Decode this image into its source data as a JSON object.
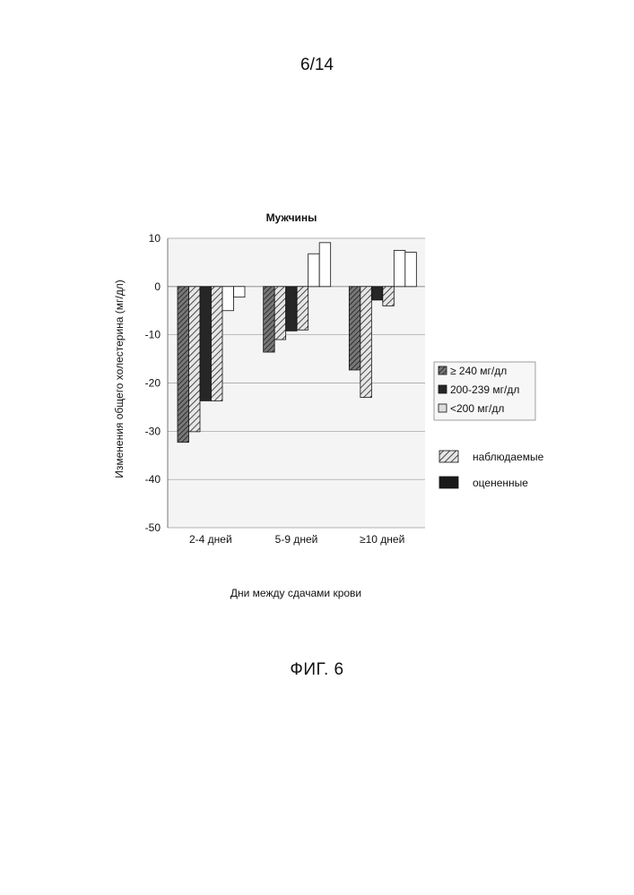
{
  "page_number": "6/14",
  "figure_caption": "ФИГ. 6",
  "chart_data": {
    "type": "bar",
    "title": "Мужчины",
    "xlabel": "Дни между сдачами крови",
    "ylabel": "Изменения общего холестерина (мг/дл)",
    "ylim": [
      -50,
      10
    ],
    "yticks": [
      10,
      0,
      -10,
      -20,
      -30,
      -40,
      -50
    ],
    "grid": true,
    "categories": [
      "2-4 дней",
      "5-9 дней",
      "≥10 дней"
    ],
    "groups": [
      {
        "name": "≥ 240 мг/дл",
        "observed": [
          -32.3,
          -13.6,
          -17.3
        ],
        "estimated": [
          -30.1,
          -11.0,
          -23.0
        ]
      },
      {
        "name": "200-239 мг/дл",
        "observed": [
          -23.7,
          -9.2,
          -2.8
        ],
        "estimated": [
          -23.7,
          -9.0,
          -4.0
        ]
      },
      {
        "name": "<200 мг/дл",
        "observed": [
          -5.0,
          6.8,
          7.5
        ],
        "estimated": [
          -2.2,
          9.1,
          7.1
        ]
      }
    ],
    "legend": {
      "series": [
        "≥ 240 мг/дл",
        "200-239 мг/дл",
        "<200 мг/дл"
      ],
      "types": [
        "наблюдаемые",
        "оцененные"
      ],
      "placement": "right"
    },
    "colors": {
      "group_240": "#4a4a4a",
      "group_200": "#262626",
      "group_lt200": "#ffffff",
      "grid": "#9a9a9a",
      "plot_bg": "#f4f4f4"
    }
  }
}
